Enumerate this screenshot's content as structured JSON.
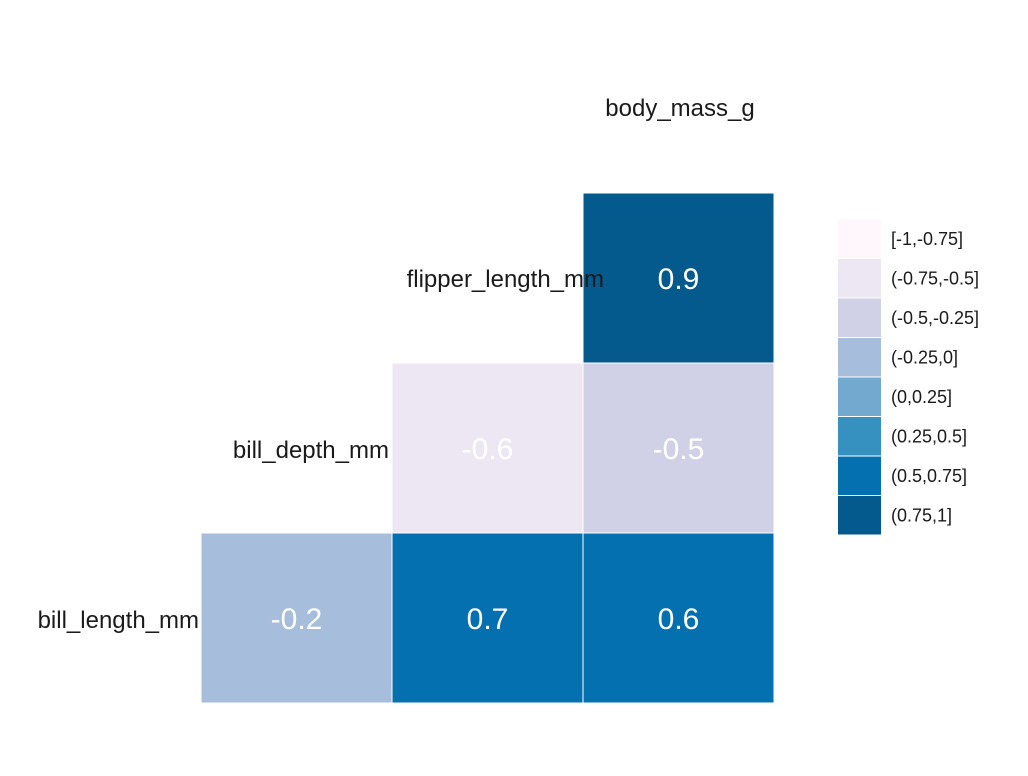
{
  "chart_data": {
    "type": "heatmap",
    "variables": [
      "bill_length_mm",
      "bill_depth_mm",
      "flipper_length_mm",
      "body_mass_g"
    ],
    "cells": [
      {
        "row": "bill_length_mm",
        "col": "bill_depth_mm",
        "value": -0.2,
        "label": "-0.2",
        "bin": 3
      },
      {
        "row": "bill_length_mm",
        "col": "flipper_length_mm",
        "value": 0.7,
        "label": "0.7",
        "bin": 6
      },
      {
        "row": "bill_length_mm",
        "col": "body_mass_g",
        "value": 0.6,
        "label": "0.6",
        "bin": 6
      },
      {
        "row": "bill_depth_mm",
        "col": "flipper_length_mm",
        "value": -0.6,
        "label": "-0.6",
        "bin": 1
      },
      {
        "row": "bill_depth_mm",
        "col": "body_mass_g",
        "value": -0.5,
        "label": "-0.5",
        "bin": 2
      },
      {
        "row": "flipper_length_mm",
        "col": "body_mass_g",
        "value": 0.9,
        "label": "0.9",
        "bin": 7
      }
    ],
    "legend": {
      "placement": "right",
      "bins": [
        {
          "label": "[-1,-0.75]",
          "color": "#fff7fb"
        },
        {
          "label": "(-0.75,-0.5]",
          "color": "#ece7f2"
        },
        {
          "label": "(-0.5,-0.25]",
          "color": "#d0d1e6"
        },
        {
          "label": "(-0.25,0]",
          "color": "#a6bddb"
        },
        {
          "label": "(0,0.25]",
          "color": "#74a9cf"
        },
        {
          "label": "(0.25,0.5]",
          "color": "#3690c0"
        },
        {
          "label": "(0.5,0.75]",
          "color": "#0570b0"
        },
        {
          "label": "(0.75,1]",
          "color": "#045a8d"
        }
      ]
    }
  }
}
